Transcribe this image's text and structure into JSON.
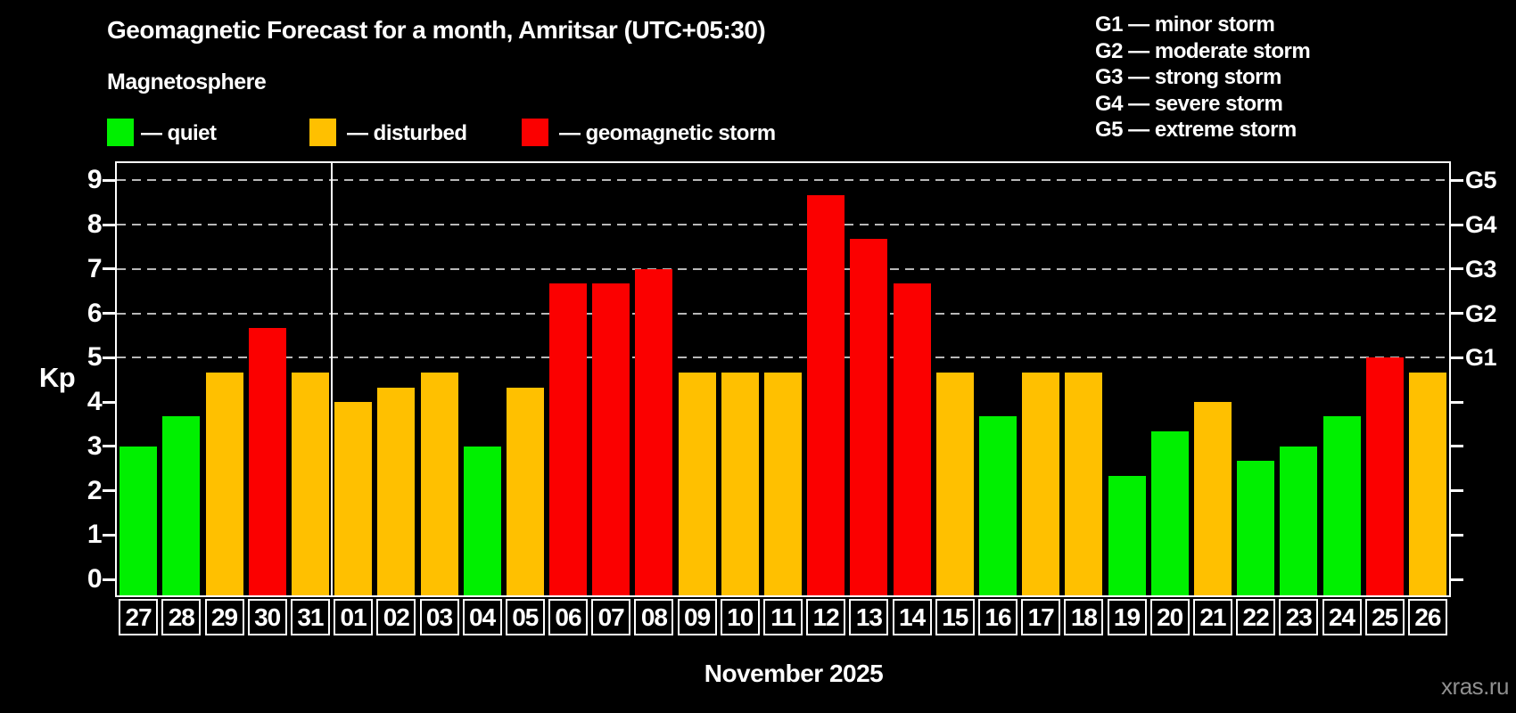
{
  "title": "Geomagnetic Forecast for a month, Amritsar (UTC+05:30)",
  "subtitle": "Magnetosphere",
  "legend": {
    "items": [
      {
        "key": "quiet",
        "label": "— quiet",
        "color": "#00f000"
      },
      {
        "key": "disturbed",
        "label": "— disturbed",
        "color": "#ffc000"
      },
      {
        "key": "storm",
        "label": "— geomagnetic storm",
        "color": "#fb0000"
      }
    ]
  },
  "storm_scale_legend": [
    "G1 — minor storm",
    "G2 — moderate storm",
    "G3 — strong storm",
    "G4 — severe storm",
    "G5 — extreme storm"
  ],
  "axis": {
    "ylabel": "Kp",
    "y_tick_values": [
      0,
      1,
      2,
      3,
      4,
      5,
      6,
      7,
      8,
      9
    ],
    "y_tick_labels": [
      "0",
      "1",
      "2",
      "3",
      "4",
      "5",
      "6",
      "7",
      "8",
      "9"
    ],
    "g_labels": [
      {
        "kp": 5,
        "text": "G1"
      },
      {
        "kp": 6,
        "text": "G2"
      },
      {
        "kp": 7,
        "text": "G3"
      },
      {
        "kp": 8,
        "text": "G4"
      },
      {
        "kp": 9,
        "text": "G5"
      }
    ]
  },
  "xlabel": "November 2025",
  "watermark": "xras.ru",
  "chart_data": {
    "type": "bar",
    "title": "Geomagnetic Forecast for a month, Amritsar (UTC+05:30)",
    "ylabel": "Kp",
    "xlabel": "November 2025",
    "categories": [
      "27",
      "28",
      "29",
      "30",
      "31",
      "01",
      "02",
      "03",
      "04",
      "05",
      "06",
      "07",
      "08",
      "09",
      "10",
      "11",
      "12",
      "13",
      "14",
      "15",
      "16",
      "17",
      "18",
      "19",
      "20",
      "21",
      "22",
      "23",
      "24",
      "25",
      "26"
    ],
    "values": [
      3.0,
      3.67,
      4.67,
      5.67,
      4.67,
      4.0,
      4.33,
      4.67,
      3.0,
      4.33,
      6.67,
      6.67,
      7.0,
      4.67,
      4.67,
      4.67,
      8.67,
      7.67,
      6.67,
      4.67,
      3.67,
      4.67,
      4.67,
      2.33,
      3.33,
      4.0,
      2.67,
      3.0,
      3.67,
      5.0,
      4.67
    ],
    "statuses": [
      "quiet",
      "quiet",
      "disturbed",
      "storm",
      "disturbed",
      "disturbed",
      "disturbed",
      "disturbed",
      "quiet",
      "disturbed",
      "storm",
      "storm",
      "storm",
      "disturbed",
      "disturbed",
      "disturbed",
      "storm",
      "storm",
      "storm",
      "disturbed",
      "quiet",
      "disturbed",
      "disturbed",
      "quiet",
      "quiet",
      "disturbed",
      "quiet",
      "quiet",
      "quiet",
      "storm",
      "disturbed"
    ],
    "palette": {
      "quiet": "#00f000",
      "disturbed": "#ffc000",
      "storm": "#fb0000"
    },
    "ylim": [
      -0.36,
      9.39
    ],
    "gridlines_at": [
      5,
      6,
      7,
      8,
      9
    ],
    "grid": "dashed horizontal lines at Kp 5–9 only",
    "legend_position": "top-left and top-right",
    "month_separator_after_index": 4
  }
}
